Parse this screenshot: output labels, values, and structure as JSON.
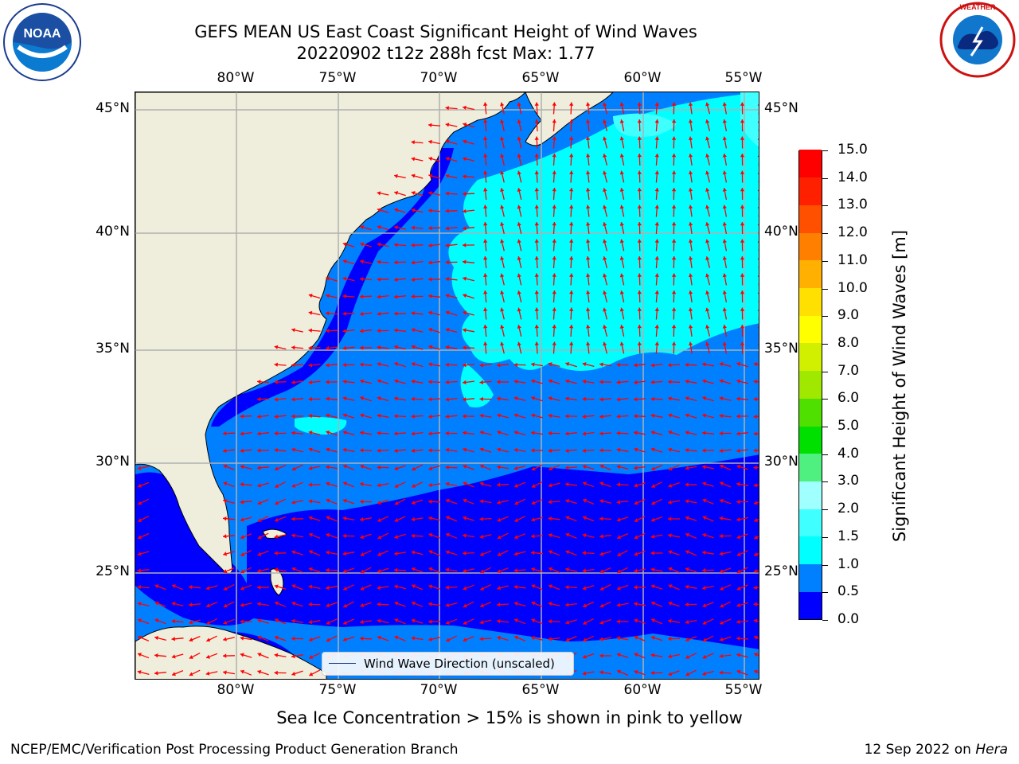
{
  "title_line1": "GEFS MEAN US East Coast Significant Height of Wind Waves",
  "title_line2": "20220902 t12z 288h fcst   Max: 1.77",
  "x_tick_labels": [
    "80°W",
    "75°W",
    "70°W",
    "65°W",
    "60°W",
    "55°W"
  ],
  "y_tick_labels": [
    "45°N",
    "40°N",
    "35°N",
    "30°N",
    "25°N"
  ],
  "legend_label": "Wind Wave Direction (unscaled)",
  "colorbar": {
    "title": "Significant Height of Wind Waves [m]",
    "tick_labels": [
      "0.0",
      "0.5",
      "1.0",
      "1.5",
      "2.0",
      "3.0",
      "4.0",
      "5.0",
      "6.0",
      "7.0",
      "8.0",
      "9.0",
      "10.0",
      "11.0",
      "12.0",
      "13.0",
      "14.0",
      "15.0"
    ],
    "colors": [
      "#0000ff",
      "#0080ff",
      "#00ffff",
      "#40ffff",
      "#a0ffff",
      "#50f080",
      "#00e000",
      "#50e000",
      "#a0e800",
      "#d0f000",
      "#ffff00",
      "#ffe000",
      "#ffb000",
      "#ff8000",
      "#ff5000",
      "#ff2000",
      "#ff0000"
    ]
  },
  "map_colors": {
    "land": "#efeedc",
    "wave_0_0_5": "#0000ff",
    "wave_0_5_1_0": "#0080ff",
    "wave_1_0_1_5": "#00ffff",
    "wave_1_5_2_0": "#40ffff",
    "arrow": "#ff0000",
    "grid": "#b0b0b0"
  },
  "map_extent": {
    "lon_range": [
      -85,
      -54.4
    ],
    "lat_range": [
      20.3,
      46
    ]
  },
  "ice_note": "Sea Ice Concentration > 15% is shown in pink to yellow",
  "footer_left": "NCEP/EMC/Verification Post Processing Product Generation Branch",
  "footer_date": "12 Sep 2022 on",
  "footer_machine": "Hera",
  "logos": {
    "noaa": "NOAA",
    "nws": "NATIONAL WEATHER SERVICE"
  }
}
